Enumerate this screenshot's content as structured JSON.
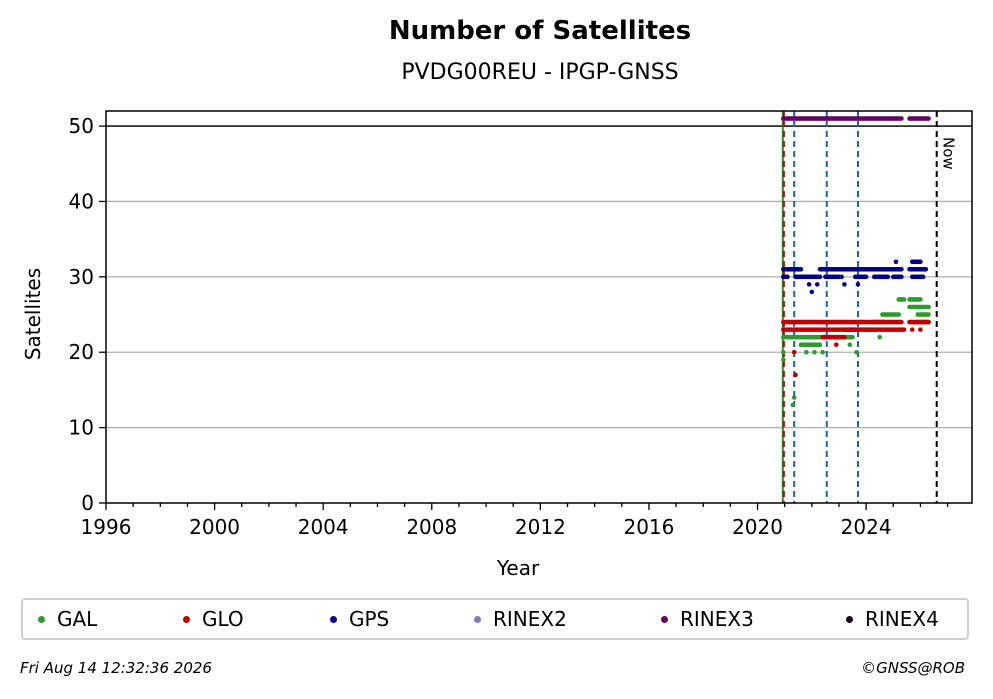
{
  "footer": {
    "timestamp": "Fri Aug 14 12:32:36 2026",
    "credit": "©GNSS@ROB"
  },
  "chart_data": {
    "type": "scatter",
    "title": "Number of Satellites",
    "subtitle": "PVDG00REU - IPGP-GNSS",
    "xlabel": "Year",
    "ylabel": "Satellites",
    "xlim": [
      1996,
      2027.9
    ],
    "ylim": [
      0,
      52
    ],
    "x_ticks": [
      1996,
      2000,
      2004,
      2008,
      2012,
      2016,
      2020,
      2024
    ],
    "y_ticks": [
      0,
      10,
      20,
      30,
      40,
      50
    ],
    "grid": "horizontal",
    "legend_position": "bottom",
    "reference_line": {
      "y": 50
    },
    "now_line": {
      "x": 2026.6,
      "label": "Now"
    },
    "event_lines": [
      {
        "x": 2020.93,
        "color": "#2e8b2e",
        "style": "solid"
      },
      {
        "x": 2020.97,
        "color": "#c00000",
        "style": "dashed"
      },
      {
        "x": 2021.35,
        "color": "#1f5fb0",
        "style": "dashed"
      },
      {
        "x": 2022.55,
        "color": "#1f5fb0",
        "style": "dashed"
      },
      {
        "x": 2023.7,
        "color": "#1f5fb0",
        "style": "dashed"
      }
    ],
    "series": [
      {
        "name": "GAL",
        "color": "#2e9b2e",
        "segments": [
          {
            "x0": 2020.95,
            "x1": 2021.3,
            "y": 22
          },
          {
            "x0": 2021.3,
            "x1": 2022.2,
            "y": 22
          },
          {
            "x0": 2021.6,
            "x1": 2022.3,
            "y": 21
          },
          {
            "x0": 2022.2,
            "x1": 2023.5,
            "y": 22
          },
          {
            "x0": 2023.2,
            "x1": 2024.3,
            "y": 23
          },
          {
            "x0": 2024.3,
            "x1": 2024.7,
            "y": 24
          },
          {
            "x0": 2024.6,
            "x1": 2025.2,
            "y": 25
          },
          {
            "x0": 2025.2,
            "x1": 2025.4,
            "y": 27
          },
          {
            "x0": 2025.6,
            "x1": 2026.3,
            "y": 26
          },
          {
            "x0": 2025.6,
            "x1": 2026.0,
            "y": 27
          },
          {
            "x0": 2025.9,
            "x1": 2026.3,
            "y": 25
          },
          {
            "x0": 2025.9,
            "x1": 2026.3,
            "y": 24
          }
        ],
        "points": [
          {
            "x": 2020.95,
            "y": 19
          },
          {
            "x": 2020.95,
            "y": 20
          },
          {
            "x": 2021.3,
            "y": 13
          },
          {
            "x": 2021.35,
            "y": 14
          },
          {
            "x": 2021.8,
            "y": 20
          },
          {
            "x": 2022.1,
            "y": 20
          },
          {
            "x": 2022.4,
            "y": 20
          },
          {
            "x": 2023.4,
            "y": 21
          },
          {
            "x": 2023.65,
            "y": 20
          },
          {
            "x": 2024.5,
            "y": 22
          }
        ]
      },
      {
        "name": "GLO",
        "color": "#c00000",
        "segments": [
          {
            "x0": 2020.95,
            "x1": 2025.3,
            "y": 24
          },
          {
            "x0": 2020.95,
            "x1": 2021.8,
            "y": 23
          },
          {
            "x0": 2021.8,
            "x1": 2023.5,
            "y": 23
          },
          {
            "x0": 2022.4,
            "x1": 2023.2,
            "y": 22
          },
          {
            "x0": 2023.3,
            "x1": 2025.4,
            "y": 23
          },
          {
            "x0": 2025.6,
            "x1": 2026.3,
            "y": 24
          }
        ],
        "points": [
          {
            "x": 2021.4,
            "y": 17
          },
          {
            "x": 2021.35,
            "y": 20
          },
          {
            "x": 2022.9,
            "y": 21
          },
          {
            "x": 2025.7,
            "y": 23
          },
          {
            "x": 2026.0,
            "y": 23
          }
        ]
      },
      {
        "name": "GPS",
        "color": "#00008b",
        "segments": [
          {
            "x0": 2020.95,
            "x1": 2021.6,
            "y": 31
          },
          {
            "x0": 2020.95,
            "x1": 2021.1,
            "y": 30
          },
          {
            "x0": 2021.4,
            "x1": 2022.3,
            "y": 30
          },
          {
            "x0": 2022.3,
            "x1": 2025.3,
            "y": 31
          },
          {
            "x0": 2022.5,
            "x1": 2023.0,
            "y": 30
          },
          {
            "x0": 2023.6,
            "x1": 2024.0,
            "y": 30
          },
          {
            "x0": 2024.3,
            "x1": 2024.8,
            "y": 30
          },
          {
            "x0": 2025.0,
            "x1": 2025.3,
            "y": 30
          },
          {
            "x0": 2025.6,
            "x1": 2026.2,
            "y": 31
          },
          {
            "x0": 2025.7,
            "x1": 2026.0,
            "y": 32
          },
          {
            "x0": 2025.7,
            "x1": 2026.1,
            "y": 30
          }
        ],
        "points": [
          {
            "x": 2021.9,
            "y": 29
          },
          {
            "x": 2022.0,
            "y": 28
          },
          {
            "x": 2022.2,
            "y": 29
          },
          {
            "x": 2023.1,
            "y": 30
          },
          {
            "x": 2023.2,
            "y": 29
          },
          {
            "x": 2023.7,
            "y": 29
          },
          {
            "x": 2025.1,
            "y": 32
          }
        ]
      },
      {
        "name": "RINEX2",
        "color": "#8878c0",
        "segments": [],
        "points": []
      },
      {
        "name": "RINEX3",
        "color": "#660066",
        "segments": [
          {
            "x0": 2020.95,
            "x1": 2025.3,
            "y": 51
          },
          {
            "x0": 2025.6,
            "x1": 2026.3,
            "y": 51
          }
        ],
        "points": []
      },
      {
        "name": "RINEX4",
        "color": "#1a0020",
        "segments": [],
        "points": []
      }
    ]
  }
}
